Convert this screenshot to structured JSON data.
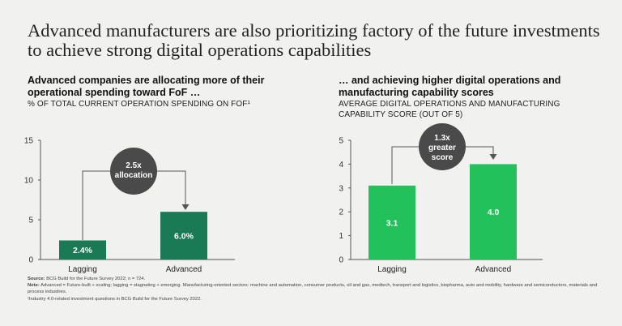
{
  "title": "Advanced manufacturers are also prioritizing factory of the future investments to achieve strong digital operations capabilities",
  "left_panel": {
    "heading": "Advanced companies are allocating more of their operational spending toward FoF …",
    "axis_label": "% OF TOTAL CURRENT OPERATION SPENDING ON FOF¹"
  },
  "right_panel": {
    "heading": "… and achieving higher digital operations and manufacturing capability scores",
    "axis_label": "AVERAGE DIGITAL OPERATIONS AND MANUFACTURING CAPABILITY SCORE (OUT OF 5)"
  },
  "colors": {
    "left_lagging": "#1a7a55",
    "left_advanced": "#1a7a55",
    "right_lagging": "#23c15c",
    "right_advanced": "#23c15c",
    "bubble": "#4a4a4a",
    "axis": "#555555"
  },
  "chart_data": [
    {
      "type": "bar",
      "title": "Advanced companies are allocating more of their operational spending toward FoF …",
      "ylabel": "% OF TOTAL CURRENT OPERATION SPENDING ON FOF¹",
      "categories": [
        "Lagging",
        "Advanced"
      ],
      "values": [
        2.4,
        6.0
      ],
      "data_labels": [
        "2.4%",
        "6.0%"
      ],
      "ylim": [
        0,
        15
      ],
      "yticks": [
        0,
        5,
        10,
        15
      ],
      "ytick_labels": [
        "0",
        "5",
        "10",
        "15"
      ],
      "annotation": {
        "line1": "2.5x",
        "line2": "allocation"
      }
    },
    {
      "type": "bar",
      "title": "… and achieving higher digital operations and manufacturing capability scores",
      "ylabel": "AVERAGE DIGITAL OPERATIONS AND MANUFACTURING CAPABILITY SCORE (OUT OF 5)",
      "categories": [
        "Lagging",
        "Advanced"
      ],
      "values": [
        3.1,
        4.0
      ],
      "data_labels": [
        "3.1",
        "4.0"
      ],
      "ylim": [
        0,
        5
      ],
      "yticks": [
        0,
        1,
        2,
        3,
        4,
        5
      ],
      "ytick_labels": [
        "0",
        "1",
        "2",
        "3",
        "4",
        "5"
      ],
      "annotation": {
        "line1": "1.3x",
        "line2": "greater",
        "line3": "score"
      }
    }
  ],
  "footer": {
    "source_label": "Source:",
    "source_text": "BCG Build for the Future Survey 2022; n = 724.",
    "note_label": "Note:",
    "note_text": "Advanced = Future-built + scaling; lagging = stagnating + emerging. Manufacturing-oriented sectors: machine and automation, consumer products, oil and gas, medtech, transport and logistics, biopharma, auto and mobility, hardware and semiconductors, materials and process industries.",
    "footnote": "¹Industry 4.0-related investment questions in BCG Build for the Future Survey 2022."
  }
}
